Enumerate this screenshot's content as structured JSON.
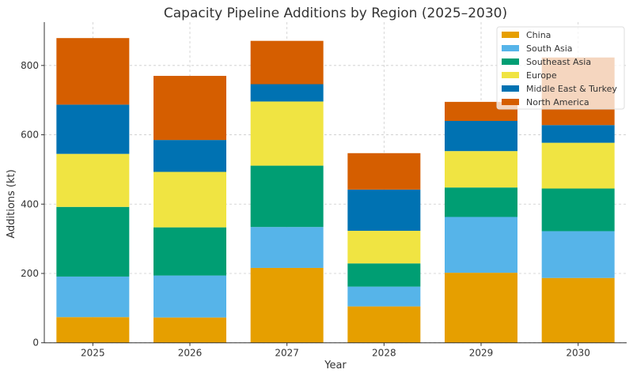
{
  "chart_data": {
    "type": "bar",
    "stacked": true,
    "title": "Capacity Pipeline Additions by Region (2025–2030)",
    "xlabel": "Year",
    "ylabel": "Additions (kt)",
    "categories": [
      "2025",
      "2026",
      "2027",
      "2028",
      "2029",
      "2030"
    ],
    "ylim": [
      0,
      925
    ],
    "yticks": [
      0,
      200,
      400,
      600,
      800
    ],
    "grid": true,
    "legend_position": "top-right",
    "series": [
      {
        "name": "China",
        "color": "#E69F00",
        "values": [
          74,
          73,
          216,
          105,
          202,
          187
        ]
      },
      {
        "name": "South Asia",
        "color": "#56B4E9",
        "values": [
          117,
          121,
          118,
          57,
          161,
          135
        ]
      },
      {
        "name": "Southeast Asia",
        "color": "#009E73",
        "values": [
          201,
          139,
          177,
          67,
          85,
          123
        ]
      },
      {
        "name": "Europe",
        "color": "#F0E442",
        "values": [
          153,
          160,
          185,
          94,
          105,
          132
        ]
      },
      {
        "name": "Middle East & Turkey",
        "color": "#0072B2",
        "values": [
          142,
          92,
          50,
          119,
          87,
          51
        ]
      },
      {
        "name": "North America",
        "color": "#D55E00",
        "values": [
          192,
          185,
          125,
          105,
          55,
          195
        ]
      }
    ]
  }
}
